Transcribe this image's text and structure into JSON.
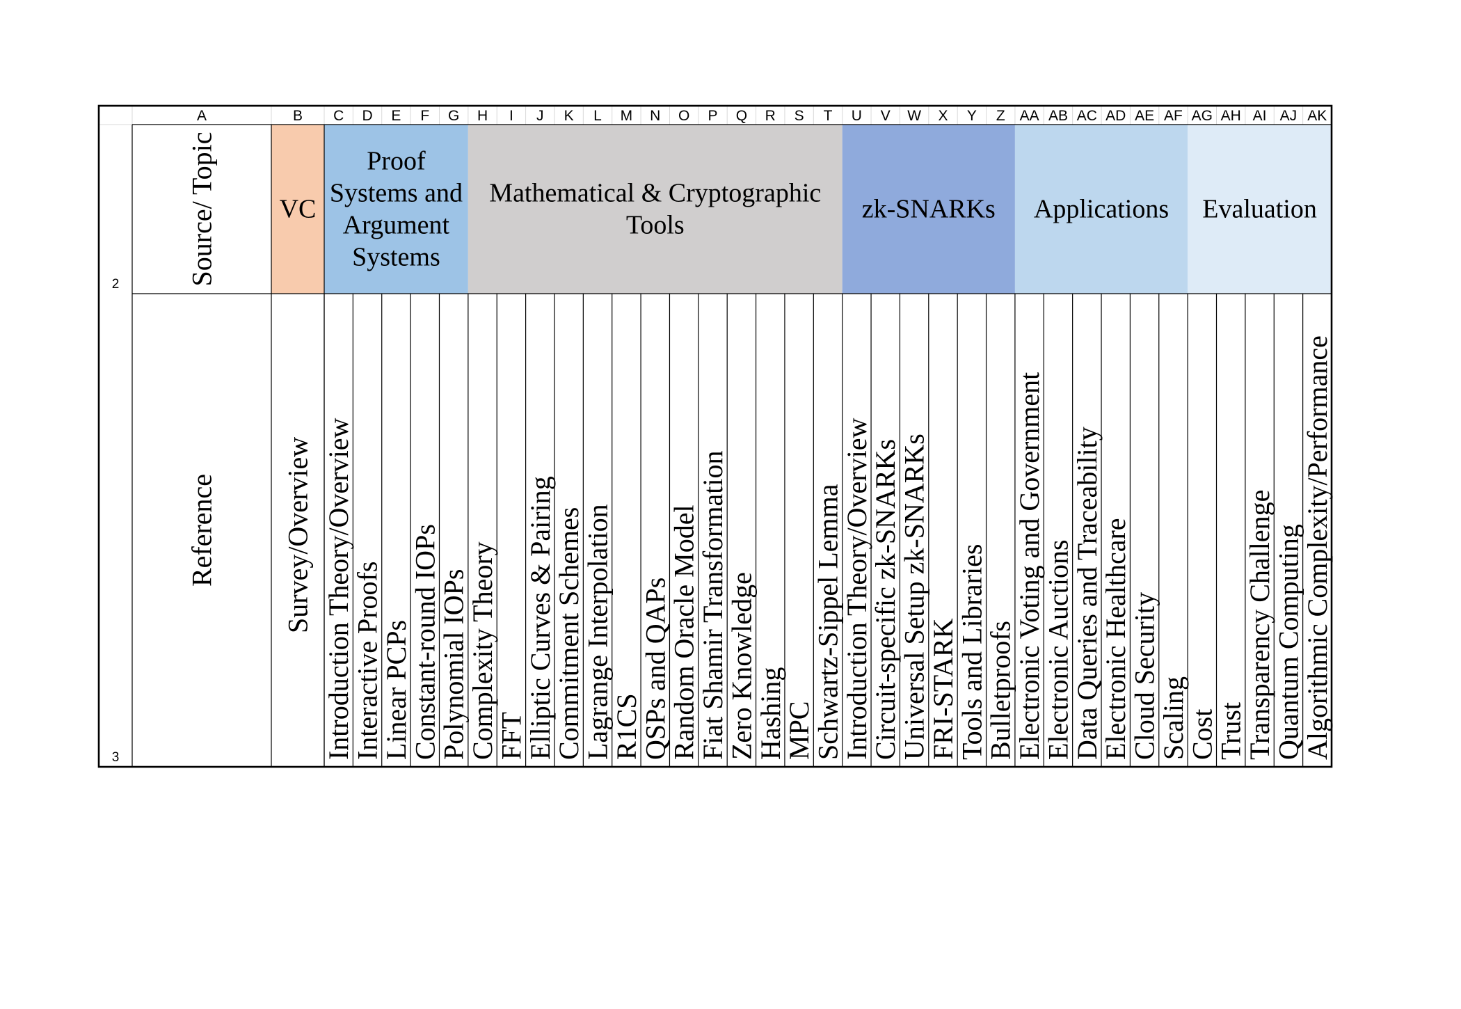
{
  "columns": [
    {
      "id": "A",
      "label": "A"
    },
    {
      "id": "B",
      "label": "B"
    },
    {
      "id": "C",
      "label": "C"
    },
    {
      "id": "D",
      "label": "D"
    },
    {
      "id": "E",
      "label": "E"
    },
    {
      "id": "F",
      "label": "F"
    },
    {
      "id": "G",
      "label": "G"
    },
    {
      "id": "H",
      "label": "H"
    },
    {
      "id": "I",
      "label": "I"
    },
    {
      "id": "J",
      "label": "J"
    },
    {
      "id": "K",
      "label": "K"
    },
    {
      "id": "L",
      "label": "L"
    },
    {
      "id": "M",
      "label": "M"
    },
    {
      "id": "N",
      "label": "N"
    },
    {
      "id": "O",
      "label": "O"
    },
    {
      "id": "P",
      "label": "P"
    },
    {
      "id": "Q",
      "label": "Q"
    },
    {
      "id": "R",
      "label": "R"
    },
    {
      "id": "S",
      "label": "S"
    },
    {
      "id": "T",
      "label": "T"
    },
    {
      "id": "U",
      "label": "U"
    },
    {
      "id": "V",
      "label": "V"
    },
    {
      "id": "W",
      "label": "W"
    },
    {
      "id": "X",
      "label": "X"
    },
    {
      "id": "Y",
      "label": "Y"
    },
    {
      "id": "Z",
      "label": "Z"
    },
    {
      "id": "AA",
      "label": "AA"
    },
    {
      "id": "AB",
      "label": "AB"
    },
    {
      "id": "AC",
      "label": "AC"
    },
    {
      "id": "AD",
      "label": "AD"
    },
    {
      "id": "AE",
      "label": "AE"
    },
    {
      "id": "AF",
      "label": "AF"
    },
    {
      "id": "AG",
      "label": "AG"
    },
    {
      "id": "AH",
      "label": "AH"
    },
    {
      "id": "AI",
      "label": "AI"
    },
    {
      "id": "AJ",
      "label": "AJ"
    },
    {
      "id": "AK",
      "label": "AK"
    }
  ],
  "rows": [
    {
      "number": "2",
      "label": "Source/ Topic"
    },
    {
      "number": "3",
      "label": "Reference"
    }
  ],
  "categories": [
    {
      "id": "vc",
      "lines": [
        "VC"
      ],
      "color": "#f8cbad",
      "from": "B",
      "to": "B"
    },
    {
      "id": "proof-systems",
      "lines": [
        "Proof",
        "Systems and",
        "Argument",
        "Systems"
      ],
      "color": "#9dc3e6",
      "from": "C",
      "to": "G"
    },
    {
      "id": "math-crypto",
      "lines": [
        "Mathematical & Cryptographic",
        "Tools"
      ],
      "color": "#d0cece",
      "from": "H",
      "to": "T"
    },
    {
      "id": "zk-snarks",
      "lines": [
        "zk-SNARKs"
      ],
      "color": "#8faadc",
      "from": "U",
      "to": "Z"
    },
    {
      "id": "applications",
      "lines": [
        "Applications"
      ],
      "color": "#bdd7ee",
      "from": "AA",
      "to": "AF"
    },
    {
      "id": "evaluation",
      "lines": [
        "Evaluation"
      ],
      "color": "#deebf7",
      "from": "AG",
      "to": "AK"
    }
  ],
  "subtopics": [
    {
      "col": "B",
      "lines": [
        "Survey/Overview"
      ]
    },
    {
      "col": "C",
      "lines": [
        "Introduction Theory/Overview"
      ]
    },
    {
      "col": "D",
      "lines": [
        "Interactive Proofs"
      ]
    },
    {
      "col": "E",
      "lines": [
        "Linear PCPs"
      ]
    },
    {
      "col": "F",
      "lines": [
        "Constant-round IOPs"
      ]
    },
    {
      "col": "G",
      "lines": [
        "Polynomial IOPs"
      ]
    },
    {
      "col": "H",
      "lines": [
        "Complexity Theory"
      ]
    },
    {
      "col": "I",
      "lines": [
        "FFT"
      ]
    },
    {
      "col": "J",
      "lines": [
        "Elliptic Curves & Pairing"
      ]
    },
    {
      "col": "K",
      "lines": [
        "Commitment Schemes"
      ]
    },
    {
      "col": "L",
      "lines": [
        "Lagrange Interpolation"
      ]
    },
    {
      "col": "M",
      "lines": [
        "R1CS"
      ]
    },
    {
      "col": "N",
      "lines": [
        "QSPs and QAPs"
      ]
    },
    {
      "col": "O",
      "lines": [
        "Random Oracle Model"
      ]
    },
    {
      "col": "P",
      "lines": [
        "Fiat Shamir Transformation"
      ]
    },
    {
      "col": "Q",
      "lines": [
        "Zero Knowledge"
      ]
    },
    {
      "col": "R",
      "lines": [
        "Hashing"
      ]
    },
    {
      "col": "S",
      "lines": [
        "MPC"
      ]
    },
    {
      "col": "T",
      "lines": [
        "Schwartz-Sippel Lemma"
      ]
    },
    {
      "col": "U",
      "lines": [
        "Introduction Theory/Overview"
      ]
    },
    {
      "col": "V",
      "lines": [
        "Circuit-specific zk-SNARKs"
      ]
    },
    {
      "col": "W",
      "lines": [
        "Universal Setup zk-SNARKs"
      ]
    },
    {
      "col": "X",
      "lines": [
        "FRI-STARK"
      ]
    },
    {
      "col": "Y",
      "lines": [
        "Tools and Libraries"
      ]
    },
    {
      "col": "Z",
      "lines": [
        "Bulletproofs"
      ]
    },
    {
      "col": "AA",
      "lines": [
        "Electronic Voting and Government"
      ]
    },
    {
      "col": "AB",
      "lines": [
        "Electronic Auctions"
      ]
    },
    {
      "col": "AC",
      "lines": [
        "Data Queries and Traceability"
      ]
    },
    {
      "col": "AD",
      "lines": [
        "Electronic Healthcare"
      ]
    },
    {
      "col": "AE",
      "lines": [
        "Cloud Security"
      ]
    },
    {
      "col": "AF",
      "lines": [
        "Scaling"
      ]
    },
    {
      "col": "AG",
      "lines": [
        "Cost"
      ]
    },
    {
      "col": "AH",
      "lines": [
        "Trust"
      ]
    },
    {
      "col": "AI",
      "lines": [
        "Transparency Challenge"
      ]
    },
    {
      "col": "AJ",
      "lines": [
        "Quantum Computing"
      ]
    },
    {
      "col": "AK",
      "lines": [
        "Algorithmic Complexity/Performance"
      ]
    }
  ]
}
